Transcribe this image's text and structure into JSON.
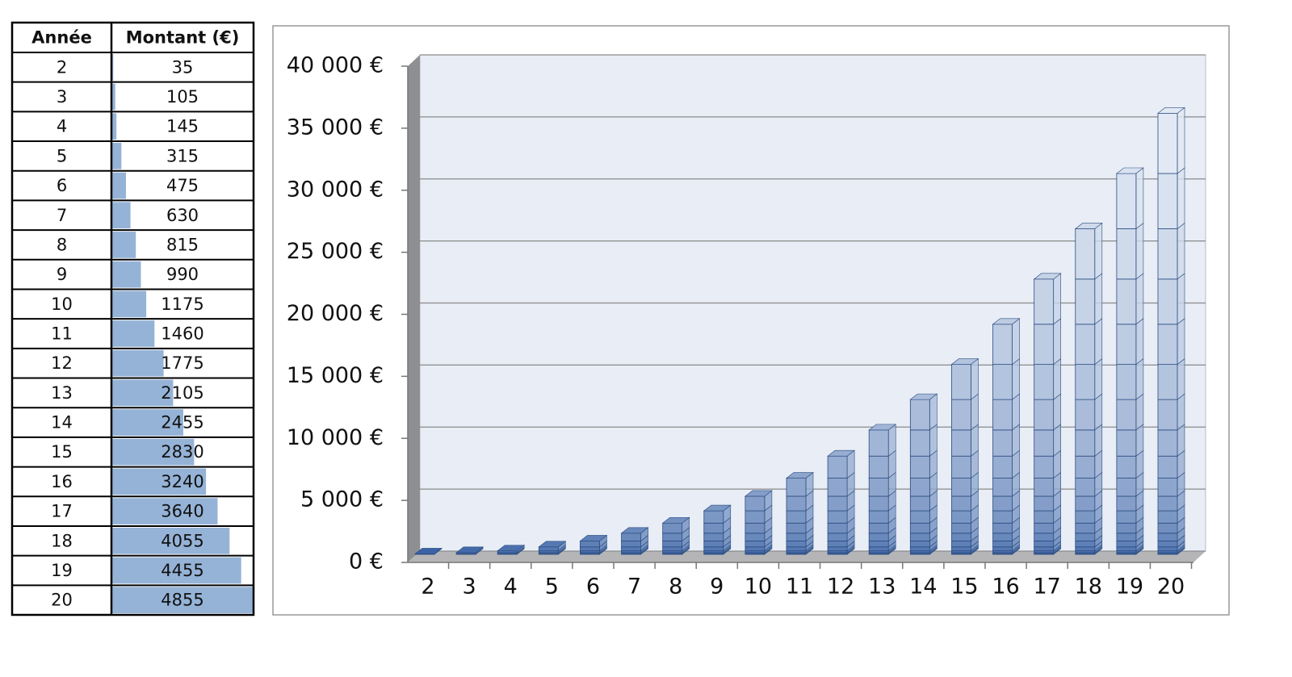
{
  "chart_data": {
    "type": "bar",
    "table_headers": [
      "Année",
      "Montant (€)"
    ],
    "categories": [
      "2",
      "3",
      "4",
      "5",
      "6",
      "7",
      "8",
      "9",
      "10",
      "11",
      "12",
      "13",
      "14",
      "15",
      "16",
      "17",
      "18",
      "19",
      "20"
    ],
    "values": [
      35,
      105,
      145,
      315,
      475,
      630,
      815,
      990,
      1175,
      1460,
      1775,
      2105,
      2455,
      2830,
      3240,
      3640,
      4055,
      4455,
      4855
    ],
    "stacking": "cumulative",
    "ylim": [
      0,
      40000
    ],
    "yticks": [
      {
        "value": 0,
        "label": "0 €"
      },
      {
        "value": 5000,
        "label": "5 000 €"
      },
      {
        "value": 10000,
        "label": "10 000 €"
      },
      {
        "value": 15000,
        "label": "15 000 €"
      },
      {
        "value": 20000,
        "label": "20 000 €"
      },
      {
        "value": 25000,
        "label": "25 000 €"
      },
      {
        "value": 30000,
        "label": "30 000 €"
      },
      {
        "value": 35000,
        "label": "35 000 €"
      },
      {
        "value": 40000,
        "label": "40 000 €"
      }
    ],
    "grid": true,
    "color": "#4a76b8",
    "table_bar_color": "#95b3d7"
  }
}
